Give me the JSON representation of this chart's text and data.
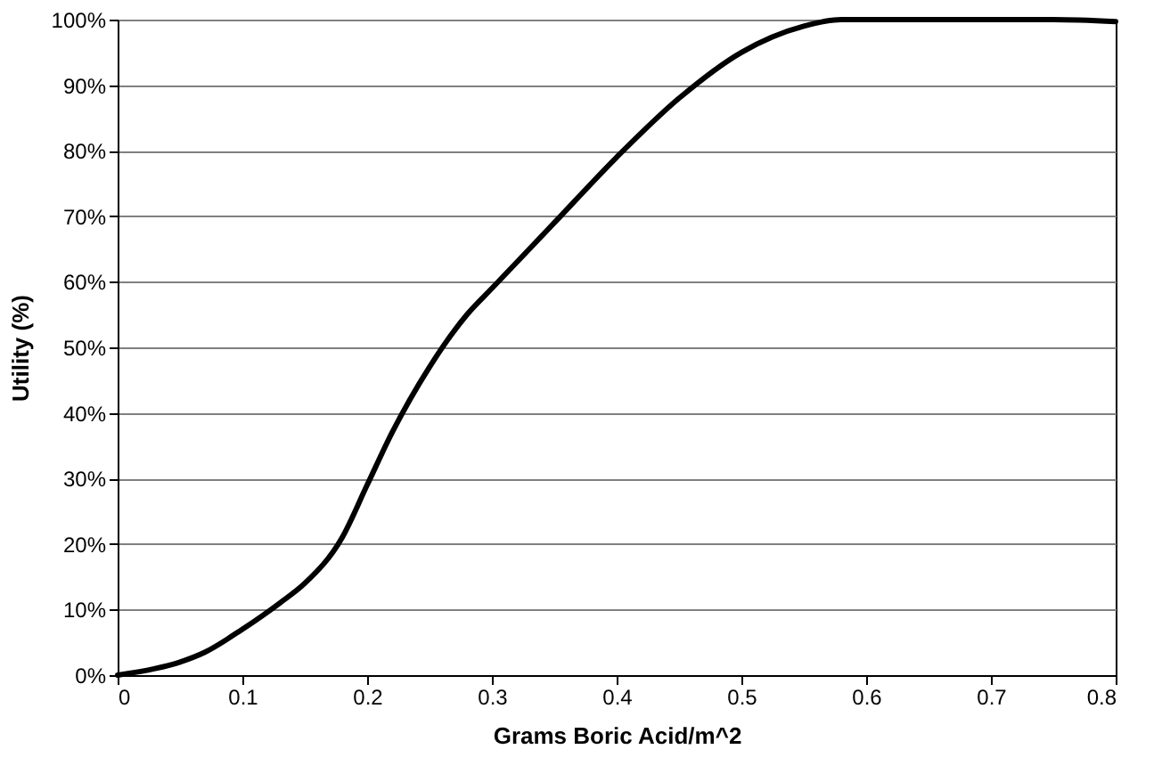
{
  "chart_data": {
    "type": "line",
    "xlabel": "Grams Boric Acid/m^2",
    "ylabel": "Utility (%)",
    "x": [
      0,
      0.03,
      0.05,
      0.07,
      0.1,
      0.13,
      0.15,
      0.18,
      0.2,
      0.22,
      0.25,
      0.28,
      0.3,
      0.35,
      0.4,
      0.45,
      0.5,
      0.55,
      0.58,
      0.6,
      0.7,
      0.75,
      0.8
    ],
    "series": [
      {
        "color": "#000000",
        "values": [
          0,
          1,
          2,
          3.5,
          7,
          11,
          14,
          21,
          29,
          37,
          47,
          55,
          59,
          69,
          79,
          88,
          95,
          99,
          100,
          100,
          100,
          100,
          99.7
        ]
      }
    ],
    "xlim": [
      0,
      0.8
    ],
    "xticks": [
      0,
      0.1,
      0.2,
      0.3,
      0.4,
      0.5,
      0.6,
      0.7,
      0.8
    ],
    "ylim": [
      0,
      100
    ],
    "yticks": [
      {
        "value": 0,
        "label": "0%"
      },
      {
        "value": 10,
        "label": "10%"
      },
      {
        "value": 20,
        "label": "20%"
      },
      {
        "value": 30,
        "label": "30%"
      },
      {
        "value": 40,
        "label": "40%"
      },
      {
        "value": 50,
        "label": "50%"
      },
      {
        "value": 60,
        "label": "60%"
      },
      {
        "value": 70,
        "label": "70%"
      },
      {
        "value": 80,
        "label": "80%"
      },
      {
        "value": 90,
        "label": "90%"
      },
      {
        "value": 100,
        "label": "100%"
      }
    ],
    "grid": "y",
    "line_style": "solid"
  }
}
